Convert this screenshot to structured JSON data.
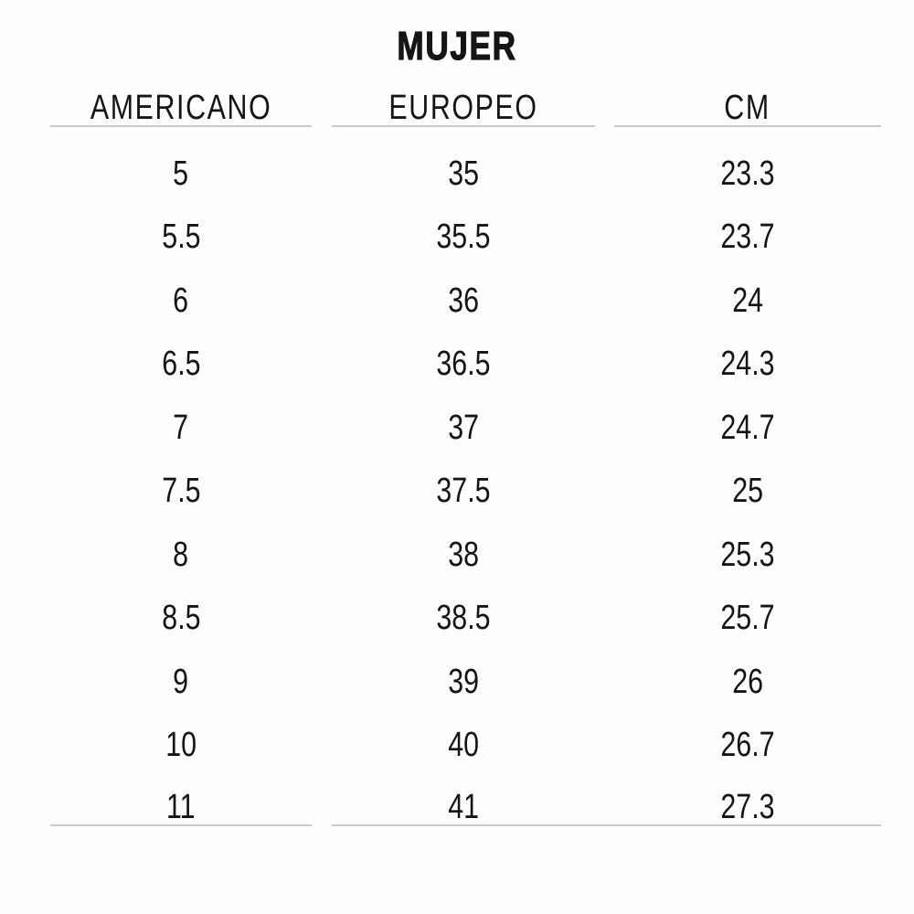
{
  "chart_data": {
    "type": "table",
    "title": "MUJER",
    "columns": [
      "AMERICANO",
      "EUROPEO",
      "CM"
    ],
    "rows": [
      [
        "5",
        "35",
        "23.3"
      ],
      [
        "5.5",
        "35.5",
        "23.7"
      ],
      [
        "6",
        "36",
        "24"
      ],
      [
        "6.5",
        "36.5",
        "24.3"
      ],
      [
        "7",
        "37",
        "24.7"
      ],
      [
        "7.5",
        "37.5",
        "25"
      ],
      [
        "8",
        "38",
        "25.3"
      ],
      [
        "8.5",
        "38.5",
        "25.7"
      ],
      [
        "9",
        "39",
        "26"
      ],
      [
        "10",
        "40",
        "26.7"
      ],
      [
        "11",
        "41",
        "27.3"
      ]
    ]
  },
  "colors": {
    "text": "#151515",
    "rule_line": "#c9c9c9",
    "background": "#fdfdfd"
  }
}
